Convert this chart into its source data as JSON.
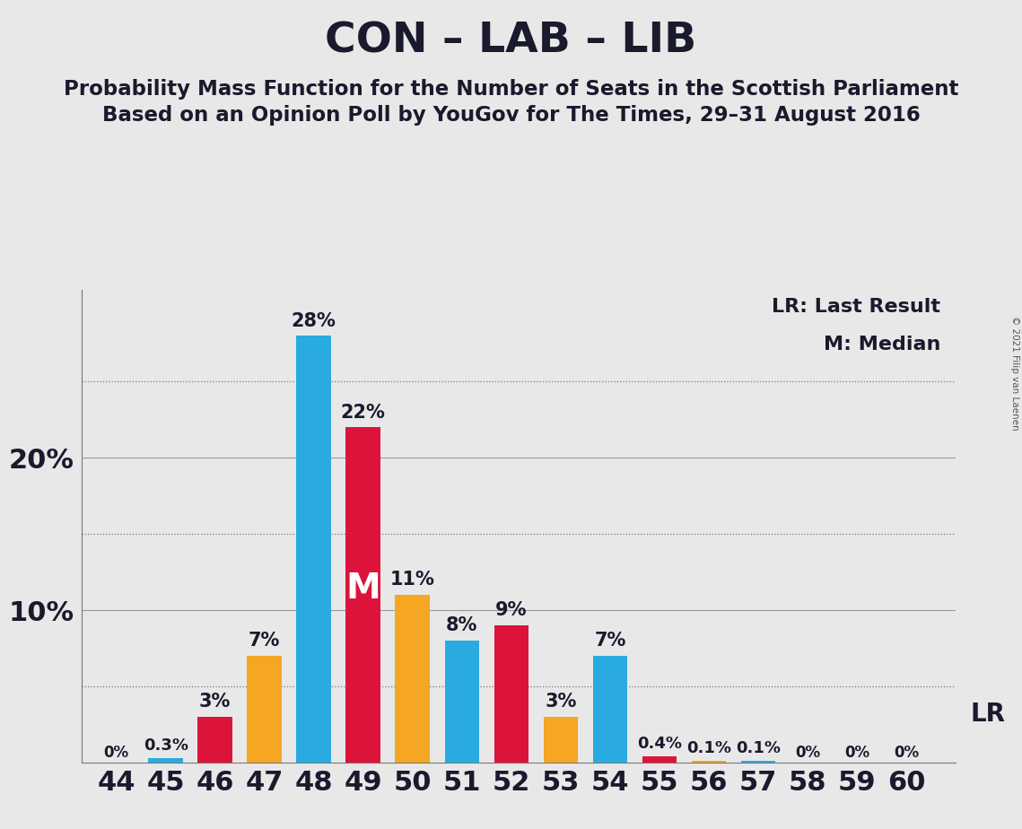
{
  "title": "CON – LAB – LIB",
  "subtitle1": "Probability Mass Function for the Number of Seats in the Scottish Parliament",
  "subtitle2": "Based on an Opinion Poll by YouGov for The Times, 29–31 August 2016",
  "copyright": "© 2021 Filip van Laenen",
  "legend_lr": "LR: Last Result",
  "legend_m": "M: Median",
  "background_color": "#e8e8e8",
  "con_color": "#29ABE2",
  "lab_color": "#DC143C",
  "lib_color": "#F5A623",
  "seats": [
    44,
    45,
    46,
    47,
    48,
    49,
    50,
    51,
    52,
    53,
    54,
    55,
    56,
    57,
    58,
    59,
    60
  ],
  "values": [
    0.0,
    0.3,
    3.0,
    7.0,
    28.0,
    22.0,
    11.0,
    8.0,
    9.0,
    3.0,
    7.0,
    0.4,
    0.1,
    0.1,
    0.0,
    0.0,
    0.0
  ],
  "colors": [
    "#29ABE2",
    "#29ABE2",
    "#DC143C",
    "#F5A623",
    "#29ABE2",
    "#DC143C",
    "#F5A623",
    "#29ABE2",
    "#DC143C",
    "#F5A623",
    "#29ABE2",
    "#DC143C",
    "#F5A623",
    "#29ABE2",
    "#DC143C",
    "#F5A623",
    "#29ABE2"
  ],
  "labels": [
    "0%",
    "0.3%",
    "3%",
    "7%",
    "28%",
    "22%",
    "11%",
    "8%",
    "9%",
    "3%",
    "7%",
    "0.4%",
    "0.1%",
    "0.1%",
    "0%",
    "0%",
    "0%"
  ],
  "show_label": [
    true,
    true,
    true,
    true,
    true,
    true,
    true,
    true,
    true,
    true,
    true,
    true,
    true,
    true,
    true,
    true,
    true
  ],
  "median_seat": 49,
  "lr_seat": 53,
  "dotted_lines": [
    5.0,
    15.0,
    25.0
  ],
  "solid_lines": [
    10.0,
    20.0
  ],
  "ylim": [
    0,
    31
  ],
  "bar_width": 0.7,
  "title_fontsize": 34,
  "subtitle_fontsize": 16.5,
  "axis_fontsize": 22,
  "label_fontsize": 15,
  "small_label_fontsize": 13
}
